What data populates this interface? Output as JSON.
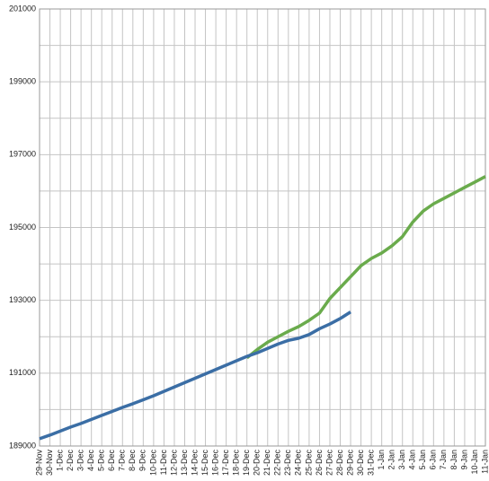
{
  "chart_data": {
    "type": "line",
    "categories": [
      "29-Nov",
      "30-Nov",
      "1-Dec",
      "2-Dec",
      "3-Dec",
      "4-Dec",
      "5-Dec",
      "6-Dec",
      "7-Dec",
      "8-Dec",
      "9-Dec",
      "10-Dec",
      "11-Dec",
      "12-Dec",
      "13-Dec",
      "14-Dec",
      "15-Dec",
      "16-Dec",
      "17-Dec",
      "18-Dec",
      "19-Dec",
      "20-Dec",
      "21-Dec",
      "22-Dec",
      "23-Dec",
      "24-Dec",
      "25-Dec",
      "26-Dec",
      "27-Dec",
      "28-Dec",
      "29-Dec",
      "30-Dec",
      "31-Dec",
      "1-Jan",
      "2-Jan",
      "3-Jan",
      "4-Jan",
      "5-Jan",
      "6-Jan",
      "7-Jan",
      "8-Jan",
      "9-Jan",
      "10-Jan",
      "11-Jan"
    ],
    "series": [
      {
        "color": "#3b6ea5",
        "values": [
          189200,
          189300,
          189410,
          189520,
          189620,
          189730,
          189840,
          189950,
          190060,
          190160,
          190270,
          190380,
          190500,
          190620,
          190740,
          190860,
          190980,
          191100,
          191220,
          191340,
          191460,
          191560,
          191680,
          191800,
          191900,
          191960,
          192060,
          192220,
          192350,
          192500,
          192680,
          null,
          null,
          null,
          null,
          null,
          null,
          null,
          null,
          null,
          null,
          null,
          null,
          null
        ]
      },
      {
        "color": "#6aab4c",
        "values": [
          null,
          null,
          null,
          null,
          null,
          null,
          null,
          null,
          null,
          null,
          null,
          null,
          null,
          null,
          null,
          null,
          null,
          null,
          null,
          null,
          191420,
          191650,
          191850,
          192000,
          192150,
          192280,
          192450,
          192650,
          193050,
          193350,
          193650,
          193950,
          194150,
          194300,
          194500,
          194750,
          195150,
          195450,
          195650,
          195800,
          195950,
          196100,
          196250,
          196400
        ]
      }
    ],
    "ylim": [
      189000,
      201000
    ],
    "yticks": [
      189000,
      191000,
      193000,
      195000,
      197000,
      199000,
      201000
    ],
    "minor_yticks": [
      190000,
      192000,
      194000,
      196000,
      198000,
      200000
    ],
    "grid": true
  }
}
